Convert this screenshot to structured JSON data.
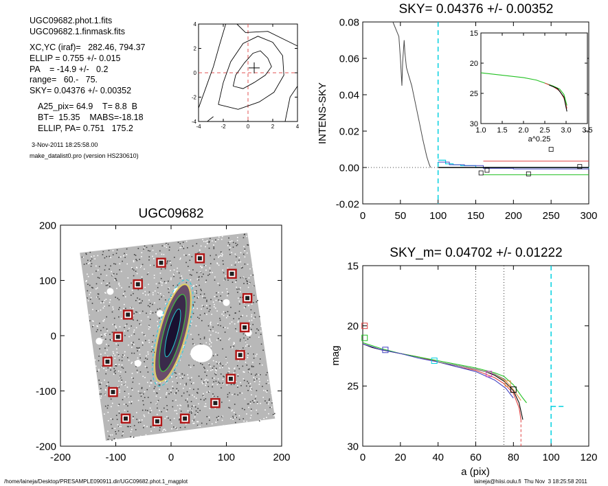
{
  "info": {
    "lines": [
      "UGC09682.phot.1.fits",
      "UGC09682.1.finmask.fits",
      "XC,YC (iraf)=   282.46, 794.37",
      "ELLIP = 0.755 +/- 0.015",
      "PA    = -14.9 +/-   0.2",
      "range=   60.-   75.",
      "SKY= 0.04376 +/- 0.00352",
      "A25_pix= 64.9    T= 8.8  B",
      "BT=  15.35    MABS=-18.18",
      "ELLIP, PA= 0.751   175.2"
    ],
    "date": "3-Nov-2011 18:25:58.00",
    "program": "make_datalist0.pro (version HS230610)"
  },
  "footer": {
    "left": "/home/laineja/Desktop/PRESAMPLE090911.dir/UGC09682.phot.1_magplot",
    "right": "laineja@hiisi.oulu.fi  Thu Nov  3 18:25:58 2011"
  },
  "colors": {
    "cyan": "#00d0e0",
    "red": "#e04040",
    "green": "#20c020",
    "gray": "#808080",
    "magenta": "#c040c0",
    "orange": "#e09040",
    "blue": "#4040c0",
    "mask": "#b01818"
  },
  "chart_data": [
    {
      "id": "contour",
      "type": "line",
      "title": "",
      "xlabel": "",
      "ylabel": "",
      "xlim": [
        -4,
        4
      ],
      "ylim": [
        -4,
        4
      ],
      "xticks": [
        -4,
        -2,
        0,
        2,
        4
      ],
      "yticks": [
        -4,
        -2,
        0,
        2,
        4
      ],
      "center": [
        0.5,
        0.4
      ],
      "contours": [
        [
          [
            -1.2,
            -1.1
          ],
          [
            -1.0,
            -0.2
          ],
          [
            -0.3,
            0.8
          ],
          [
            0.4,
            1.6
          ],
          [
            1.0,
            1.8
          ],
          [
            1.6,
            1.2
          ],
          [
            1.9,
            0.5
          ],
          [
            1.4,
            -0.2
          ],
          [
            0.5,
            -0.8
          ],
          [
            -0.4,
            -1.3
          ],
          [
            -1.2,
            -1.1
          ]
        ],
        [
          [
            -2.4,
            -2.6
          ],
          [
            -2.0,
            -0.8
          ],
          [
            -1.4,
            0.9
          ],
          [
            -0.4,
            2.4
          ],
          [
            0.8,
            3.0
          ],
          [
            2.0,
            2.5
          ],
          [
            2.8,
            1.4
          ],
          [
            2.9,
            -0.2
          ],
          [
            2.1,
            -1.6
          ],
          [
            0.9,
            -2.4
          ],
          [
            -0.8,
            -3.0
          ],
          [
            -2.4,
            -2.6
          ]
        ],
        [
          [
            -4,
            -2.9
          ],
          [
            -3.4,
            -1.2
          ],
          [
            -2.8,
            0.5
          ],
          [
            -2.3,
            2.3
          ],
          [
            -1.8,
            4
          ]
        ],
        [
          [
            -0.9,
            4
          ],
          [
            -0.2,
            3.3
          ],
          [
            1.6,
            3.4
          ],
          [
            3.0,
            2.7
          ],
          [
            4,
            2.2
          ]
        ],
        [
          [
            3.0,
            -4
          ],
          [
            3.4,
            -2.0
          ],
          [
            4,
            -1.1
          ]
        ],
        [
          [
            -3.3,
            -4
          ],
          [
            -2.8,
            -3.6
          ]
        ]
      ]
    },
    {
      "id": "sky",
      "type": "line",
      "title": "SKY= 0.04376 +/- 0.00352",
      "xlabel": "",
      "ylabel": "INTENS-SKY",
      "xlim": [
        0,
        300
      ],
      "ylim": [
        -0.02,
        0.08
      ],
      "xticks": [
        0,
        50,
        100,
        150,
        200,
        250,
        300
      ],
      "yticks": [
        -0.02,
        0.0,
        0.02,
        0.04,
        0.06,
        0.08
      ],
      "ytick_labels": [
        "-0.02",
        "0.00",
        "0.02",
        "0.04",
        "0.06",
        "0.08"
      ],
      "vline": 100,
      "intens": [
        [
          40,
          0.08
        ],
        [
          48,
          0.072
        ],
        [
          50,
          0.06
        ],
        [
          52,
          0.045
        ],
        [
          53,
          0.058
        ],
        [
          55,
          0.07
        ],
        [
          56,
          0.063
        ],
        [
          58,
          0.055
        ],
        [
          60,
          0.052
        ],
        [
          65,
          0.045
        ],
        [
          70,
          0.035
        ],
        [
          75,
          0.025
        ],
        [
          80,
          0.015
        ],
        [
          85,
          0.006
        ],
        [
          88,
          0.002
        ],
        [
          90,
          0.0
        ]
      ],
      "cyan_steps": [
        [
          100,
          0.004
        ],
        [
          110,
          0.002
        ],
        [
          120,
          0.0015
        ],
        [
          130,
          0.001
        ],
        [
          150,
          0.0
        ],
        [
          200,
          0.0
        ],
        [
          300,
          -0.0005
        ]
      ],
      "blue_steps": [
        [
          100,
          0.003
        ],
        [
          115,
          0.0015
        ],
        [
          135,
          0.001
        ],
        [
          160,
          -0.0005
        ],
        [
          200,
          -0.0008
        ],
        [
          300,
          -0.001
        ]
      ],
      "black_line": [
        [
          100,
          0.0
        ],
        [
          300,
          0.0
        ]
      ],
      "red_line": [
        [
          160,
          0.0035
        ],
        [
          300,
          0.0035
        ]
      ],
      "green_line": [
        [
          160,
          -0.004
        ],
        [
          300,
          -0.004
        ]
      ],
      "squares": [
        [
          157,
          -0.003
        ],
        [
          165,
          -0.0015
        ],
        [
          220,
          -0.0035
        ],
        [
          250,
          0.01
        ],
        [
          288,
          0.0005
        ]
      ],
      "inset": {
        "type": "line",
        "xlabel": "a^0.25",
        "xlim": [
          1.0,
          3.5
        ],
        "ylim": [
          15,
          30
        ],
        "xticks": [
          1.0,
          1.5,
          2.0,
          2.5,
          3.0,
          3.5
        ],
        "xtick_labels": [
          "1.0",
          "1.5",
          "2.0",
          "2.5",
          "3.0",
          "3.5"
        ],
        "yticks": [
          15,
          20,
          25,
          30
        ],
        "series": [
          {
            "color": "green",
            "values": [
              [
                1.0,
                21.6
              ],
              [
                1.5,
                22.0
              ],
              [
                2.0,
                22.4
              ],
              [
                2.3,
                22.8
              ],
              [
                2.5,
                23.3
              ],
              [
                2.7,
                23.8
              ],
              [
                2.85,
                24.3
              ],
              [
                2.95,
                25.2
              ],
              [
                3.0,
                26.5
              ],
              [
                3.02,
                27.0
              ]
            ]
          },
          {
            "color": "red",
            "values": [
              [
                2.5,
                23.3
              ],
              [
                2.7,
                23.9
              ],
              [
                2.85,
                24.6
              ],
              [
                2.95,
                25.8
              ],
              [
                3.0,
                27.0
              ],
              [
                3.02,
                27.5
              ]
            ]
          },
          {
            "color": "black",
            "values": [
              [
                2.6,
                23.6
              ],
              [
                2.8,
                24.2
              ],
              [
                2.95,
                25.6
              ],
              [
                3.02,
                28.0
              ]
            ]
          }
        ]
      }
    },
    {
      "id": "image",
      "type": "scatter",
      "title": "UGC09682",
      "xlabel": "",
      "ylabel": "",
      "xlim": [
        -200,
        200
      ],
      "ylim": [
        -200,
        200
      ],
      "xticks": [
        -200,
        -100,
        0,
        100,
        200
      ],
      "yticks": [
        -200,
        -100,
        0,
        100,
        200
      ],
      "mask_squares": [
        [
          -18,
          132
        ],
        [
          52,
          140
        ],
        [
          110,
          112
        ],
        [
          -60,
          93
        ],
        [
          138,
          68
        ],
        [
          -78,
          38
        ],
        [
          133,
          15
        ],
        [
          -96,
          -2
        ],
        [
          125,
          -35
        ],
        [
          -115,
          -47
        ],
        [
          108,
          -78
        ],
        [
          -105,
          -102
        ],
        [
          80,
          -122
        ],
        [
          -82,
          -150
        ],
        [
          -25,
          -155
        ],
        [
          25,
          -150
        ]
      ]
    },
    {
      "id": "mag",
      "type": "line",
      "title": "SKY_m=  0.04702 +/- 0.01222",
      "xlabel": "a (pix)",
      "ylabel": "mag",
      "xlim": [
        0,
        120
      ],
      "ylim": [
        30,
        15
      ],
      "xticks": [
        0,
        20,
        40,
        60,
        80,
        100,
        120
      ],
      "yticks": [
        15,
        20,
        25,
        30
      ],
      "dotted_vlines": [
        60,
        75
      ],
      "dashed_vline": 100,
      "dashed_seg": [
        [
          100,
          26.7
        ],
        [
          108,
          26.7
        ]
      ],
      "series": [
        {
          "color": "black",
          "values": [
            [
              0,
              21.5
            ],
            [
              5,
              21.8
            ],
            [
              10,
              22.0
            ],
            [
              20,
              22.3
            ],
            [
              30,
              22.6
            ],
            [
              40,
              23.0
            ],
            [
              50,
              23.3
            ],
            [
              60,
              23.6
            ],
            [
              65,
              23.8
            ],
            [
              70,
              24.1
            ],
            [
              75,
              24.6
            ],
            [
              80,
              25.4
            ],
            [
              83,
              26.4
            ],
            [
              85,
              27.8
            ]
          ]
        },
        {
          "color": "red",
          "values": [
            [
              0,
              21.5
            ],
            [
              10,
              22.0
            ],
            [
              20,
              22.3
            ],
            [
              30,
              22.6
            ],
            [
              40,
              23.0
            ],
            [
              50,
              23.4
            ],
            [
              60,
              23.7
            ],
            [
              70,
              24.3
            ],
            [
              75,
              24.8
            ],
            [
              80,
              25.6
            ],
            [
              83,
              26.8
            ],
            [
              84,
              27.8
            ]
          ]
        },
        {
          "color": "green",
          "values": [
            [
              0,
              21.4
            ],
            [
              10,
              21.9
            ],
            [
              20,
              22.3
            ],
            [
              30,
              22.6
            ],
            [
              40,
              22.9
            ],
            [
              50,
              23.2
            ],
            [
              60,
              23.5
            ],
            [
              70,
              23.9
            ],
            [
              75,
              24.2
            ],
            [
              80,
              24.9
            ],
            [
              85,
              26.0
            ],
            [
              87,
              26.4
            ]
          ]
        },
        {
          "color": "blue",
          "values": [
            [
              0,
              21.5
            ],
            [
              10,
              22.0
            ],
            [
              20,
              22.3
            ],
            [
              30,
              22.7
            ],
            [
              40,
              23.0
            ],
            [
              50,
              23.4
            ],
            [
              60,
              23.8
            ],
            [
              70,
              24.5
            ],
            [
              76,
              25.2
            ],
            [
              80,
              26.0
            ]
          ]
        },
        {
          "color": "orange",
          "values": [
            [
              60,
              23.6
            ],
            [
              70,
              24.0
            ],
            [
              76,
              24.6
            ],
            [
              80,
              25.3
            ],
            [
              84,
              26.2
            ]
          ]
        },
        {
          "color": "gray",
          "values": [
            [
              40,
              23.0
            ],
            [
              50,
              23.3
            ],
            [
              60,
              23.6
            ],
            [
              70,
              24.0
            ],
            [
              76,
              24.5
            ]
          ]
        }
      ],
      "squares": [
        {
          "color": "red",
          "x": 1,
          "y": 20.0
        },
        {
          "color": "green",
          "x": 1,
          "y": 21.0
        },
        {
          "color": "blue",
          "x": 12,
          "y": 22.0
        },
        {
          "color": "cyan",
          "x": 38,
          "y": 22.9
        },
        {
          "color": "magenta",
          "x": 67,
          "y": 24.0
        },
        {
          "color": "orange",
          "x": 77,
          "y": 24.8
        },
        {
          "color": "black",
          "x": 80,
          "y": 25.3
        }
      ]
    }
  ]
}
